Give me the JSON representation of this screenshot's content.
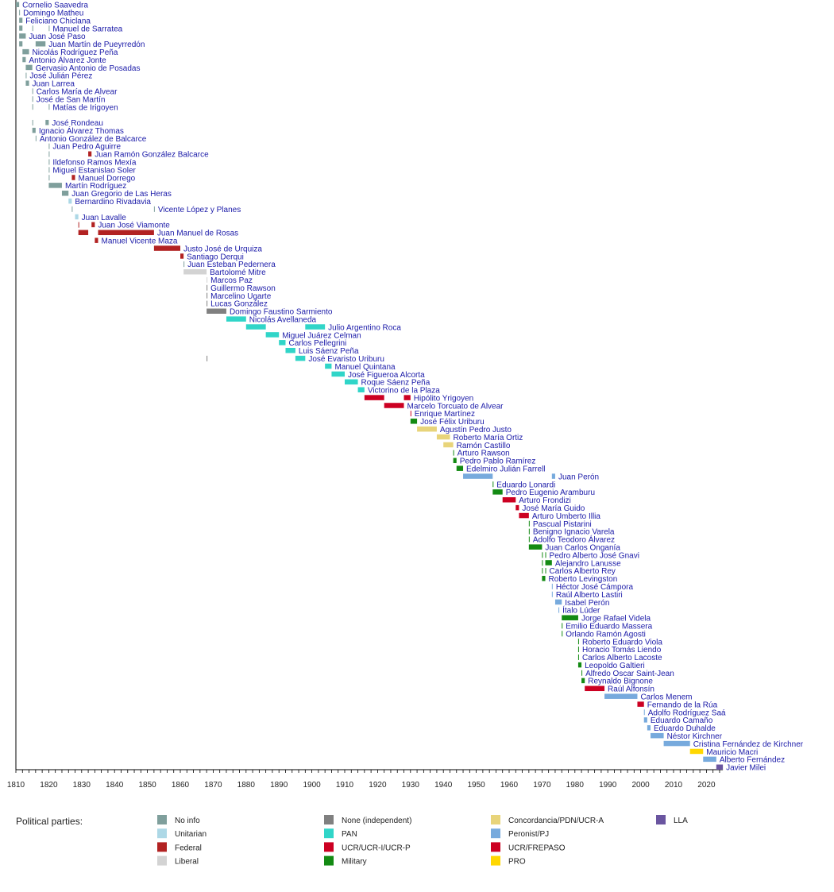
{
  "chart_data": {
    "type": "timeline",
    "title": "",
    "xlabel": "",
    "ylabel": "",
    "xlim": [
      1810,
      2025
    ],
    "x_ticks": [
      1810,
      1820,
      1830,
      1840,
      1850,
      1860,
      1870,
      1880,
      1890,
      1900,
      1910,
      1920,
      1930,
      1940,
      1950,
      1960,
      1970,
      1980,
      1990,
      2000,
      2010,
      2020
    ],
    "legend": {
      "title": "Political parties:",
      "placement": "bottom",
      "entries": [
        {
          "key": "noinfo",
          "label": "No info",
          "color": "#7f9f9c"
        },
        {
          "key": "unitarian",
          "label": "Unitarian",
          "color": "#add8e6"
        },
        {
          "key": "federal",
          "label": "Federal",
          "color": "#b22222"
        },
        {
          "key": "liberal",
          "label": "Liberal",
          "color": "#d3d3d3"
        },
        {
          "key": "none",
          "label": "None (independent)",
          "color": "#808080"
        },
        {
          "key": "pan",
          "label": "PAN",
          "color": "#30d5c8"
        },
        {
          "key": "ucr",
          "label": "UCR/UCR-I/UCR-P",
          "color": "#cc0022"
        },
        {
          "key": "military",
          "label": "Military",
          "color": "#138a13"
        },
        {
          "key": "concordancia",
          "label": "Concordancia/PDN/UCR-A",
          "color": "#e8d47a"
        },
        {
          "key": "peronist",
          "label": "Peronist/PJ",
          "color": "#77aadd"
        },
        {
          "key": "frepaso",
          "label": "UCR/FREPASO",
          "color": "#cc0022"
        },
        {
          "key": "pro",
          "label": "PRO",
          "color": "#ffd700"
        },
        {
          "key": "lla",
          "label": "LLA",
          "color": "#6a55a0"
        }
      ]
    },
    "rows": [
      {
        "name": "Cornelio Saavedra",
        "terms": [
          [
            1810,
            1811,
            "noinfo"
          ]
        ]
      },
      {
        "name": "Domingo Matheu",
        "terms": [
          [
            1811,
            1811,
            "noinfo"
          ]
        ]
      },
      {
        "name": "Feliciano Chiclana",
        "terms": [
          [
            1811,
            1812,
            "noinfo"
          ]
        ]
      },
      {
        "name": "Manuel de Sarratea",
        "terms": [
          [
            1811,
            1812,
            "noinfo"
          ],
          [
            1815,
            1815,
            "noinfo"
          ],
          [
            1820,
            1820,
            "noinfo"
          ]
        ]
      },
      {
        "name": "Juan José Paso",
        "terms": [
          [
            1811,
            1813,
            "noinfo"
          ]
        ]
      },
      {
        "name": "Juan Martín de Pueyrredón",
        "terms": [
          [
            1811,
            1812,
            "noinfo"
          ],
          [
            1816,
            1819,
            "noinfo"
          ]
        ]
      },
      {
        "name": "Nicolás Rodríguez Peña",
        "terms": [
          [
            1812,
            1814,
            "noinfo"
          ]
        ]
      },
      {
        "name": "Antonio Álvarez Jonte",
        "terms": [
          [
            1812,
            1813,
            "noinfo"
          ]
        ]
      },
      {
        "name": "Gervasio Antonio de Posadas",
        "terms": [
          [
            1813,
            1815,
            "noinfo"
          ]
        ]
      },
      {
        "name": "José Julián Pérez",
        "terms": [
          [
            1813,
            1813,
            "noinfo"
          ]
        ]
      },
      {
        "name": "Juan Larrea",
        "terms": [
          [
            1813,
            1814,
            "noinfo"
          ]
        ]
      },
      {
        "name": "Carlos María de Alvear",
        "terms": [
          [
            1815,
            1815,
            "noinfo"
          ]
        ]
      },
      {
        "name": "José de San Martín",
        "terms": [
          [
            1815,
            1815,
            "noinfo"
          ]
        ]
      },
      {
        "name": "Matías de Irigoyen",
        "terms": [
          [
            1815,
            1815,
            "noinfo"
          ],
          [
            1820,
            1820,
            "noinfo"
          ]
        ]
      },
      {
        "name": "",
        "terms": []
      },
      {
        "name": "José Rondeau",
        "terms": [
          [
            1815,
            1815,
            "noinfo"
          ],
          [
            1819,
            1820,
            "noinfo"
          ]
        ]
      },
      {
        "name": "Ignacio Álvarez Thomas",
        "terms": [
          [
            1815,
            1816,
            "noinfo"
          ]
        ]
      },
      {
        "name": "Antonio González de Balcarce",
        "terms": [
          [
            1816,
            1816,
            "noinfo"
          ]
        ]
      },
      {
        "name": "Juan Pedro Aguirre",
        "terms": [
          [
            1820,
            1820,
            "noinfo"
          ]
        ]
      },
      {
        "name": "Juan Ramón González Balcarce",
        "terms": [
          [
            1820,
            1820,
            "noinfo"
          ],
          [
            1832,
            1833,
            "federal"
          ]
        ]
      },
      {
        "name": "Ildefonso Ramos Mexía",
        "terms": [
          [
            1820,
            1820,
            "noinfo"
          ]
        ]
      },
      {
        "name": "Miguel Estanislao Soler",
        "terms": [
          [
            1820,
            1820,
            "noinfo"
          ]
        ]
      },
      {
        "name": "Manuel Dorrego",
        "terms": [
          [
            1820,
            1820,
            "noinfo"
          ],
          [
            1827,
            1828,
            "federal"
          ]
        ]
      },
      {
        "name": "Martín Rodríguez",
        "terms": [
          [
            1820,
            1824,
            "noinfo"
          ]
        ]
      },
      {
        "name": "Juan Gregorio de Las Heras",
        "terms": [
          [
            1824,
            1826,
            "noinfo"
          ]
        ]
      },
      {
        "name": "Bernardino Rivadavia",
        "terms": [
          [
            1826,
            1827,
            "unitarian"
          ]
        ]
      },
      {
        "name": "Vicente López y Planes",
        "terms": [
          [
            1827,
            1827,
            "noinfo"
          ],
          [
            1852,
            1852,
            "noinfo"
          ]
        ]
      },
      {
        "name": "Juan Lavalle",
        "terms": [
          [
            1828,
            1829,
            "unitarian"
          ]
        ]
      },
      {
        "name": "Juan José Viamonte",
        "terms": [
          [
            1829,
            1829,
            "federal"
          ],
          [
            1833,
            1834,
            "federal"
          ]
        ]
      },
      {
        "name": "Juan Manuel de Rosas",
        "terms": [
          [
            1829,
            1832,
            "federal"
          ],
          [
            1835,
            1852,
            "federal"
          ]
        ]
      },
      {
        "name": "Manuel Vicente Maza",
        "terms": [
          [
            1834,
            1835,
            "federal"
          ]
        ]
      },
      {
        "name": "Justo José de Urquiza",
        "terms": [
          [
            1852,
            1860,
            "federal"
          ]
        ]
      },
      {
        "name": "Santiago Derqui",
        "terms": [
          [
            1860,
            1861,
            "federal"
          ]
        ]
      },
      {
        "name": "Juan Esteban Pedernera",
        "terms": [
          [
            1861,
            1861,
            "noinfo"
          ]
        ]
      },
      {
        "name": "Bartolomé Mitre",
        "terms": [
          [
            1861,
            1868,
            "liberal"
          ]
        ]
      },
      {
        "name": "Marcos Paz",
        "terms": [
          [
            1868,
            1868,
            "liberal"
          ]
        ]
      },
      {
        "name": "Guillermo Rawson",
        "terms": [
          [
            1868,
            1868,
            "none"
          ]
        ]
      },
      {
        "name": "Marcelino Ugarte",
        "terms": [
          [
            1868,
            1868,
            "none"
          ]
        ]
      },
      {
        "name": "Lucas González",
        "terms": [
          [
            1868,
            1868,
            "none"
          ]
        ]
      },
      {
        "name": "Domingo Faustino Sarmiento",
        "terms": [
          [
            1868,
            1874,
            "none"
          ]
        ]
      },
      {
        "name": "Nicolás Avellaneda",
        "terms": [
          [
            1874,
            1880,
            "pan"
          ]
        ]
      },
      {
        "name": "Julio Argentino Roca",
        "terms": [
          [
            1880,
            1886,
            "pan"
          ],
          [
            1898,
            1904,
            "pan"
          ]
        ]
      },
      {
        "name": "Miguel Juárez Celman",
        "terms": [
          [
            1886,
            1890,
            "pan"
          ]
        ]
      },
      {
        "name": "Carlos Pellegrini",
        "terms": [
          [
            1890,
            1892,
            "pan"
          ]
        ]
      },
      {
        "name": "Luis Sáenz Peña",
        "terms": [
          [
            1892,
            1895,
            "pan"
          ]
        ]
      },
      {
        "name": "José Evaristo Uriburu",
        "terms": [
          [
            1868,
            1868,
            "none"
          ],
          [
            1895,
            1898,
            "pan"
          ]
        ]
      },
      {
        "name": "Manuel Quintana",
        "terms": [
          [
            1904,
            1906,
            "pan"
          ]
        ]
      },
      {
        "name": "José Figueroa Alcorta",
        "terms": [
          [
            1906,
            1910,
            "pan"
          ]
        ]
      },
      {
        "name": "Roque Sáenz Peña",
        "terms": [
          [
            1910,
            1914,
            "pan"
          ]
        ]
      },
      {
        "name": "Victorino de la Plaza",
        "terms": [
          [
            1914,
            1916,
            "pan"
          ]
        ]
      },
      {
        "name": "Hipólito Yrigoyen",
        "terms": [
          [
            1916,
            1922,
            "ucr"
          ],
          [
            1928,
            1930,
            "ucr"
          ]
        ]
      },
      {
        "name": "Marcelo Torcuato de Alvear",
        "terms": [
          [
            1922,
            1928,
            "ucr"
          ]
        ]
      },
      {
        "name": "Enrique Martínez",
        "terms": [
          [
            1930,
            1930,
            "ucr"
          ]
        ]
      },
      {
        "name": "José Félix Uriburu",
        "terms": [
          [
            1930,
            1932,
            "military"
          ]
        ]
      },
      {
        "name": "Agustín Pedro Justo",
        "terms": [
          [
            1932,
            1938,
            "concordancia"
          ]
        ]
      },
      {
        "name": "Roberto María Ortiz",
        "terms": [
          [
            1938,
            1942,
            "concordancia"
          ]
        ]
      },
      {
        "name": "Ramón Castillo",
        "terms": [
          [
            1940,
            1943,
            "concordancia"
          ]
        ]
      },
      {
        "name": "Arturo Rawson",
        "terms": [
          [
            1943,
            1943,
            "military"
          ]
        ]
      },
      {
        "name": "Pedro Pablo Ramírez",
        "terms": [
          [
            1943,
            1944,
            "military"
          ]
        ]
      },
      {
        "name": "Edelmiro Julián Farrell",
        "terms": [
          [
            1944,
            1946,
            "military"
          ]
        ]
      },
      {
        "name": "Juan Perón",
        "terms": [
          [
            1946,
            1955,
            "peronist"
          ],
          [
            1973,
            1974,
            "peronist"
          ]
        ]
      },
      {
        "name": "Eduardo Lonardi",
        "terms": [
          [
            1955,
            1955,
            "military"
          ]
        ]
      },
      {
        "name": "Pedro Eugenio Aramburu",
        "terms": [
          [
            1955,
            1958,
            "military"
          ]
        ]
      },
      {
        "name": "Arturo Frondizi",
        "terms": [
          [
            1958,
            1962,
            "ucr"
          ]
        ]
      },
      {
        "name": "José María Guido",
        "terms": [
          [
            1962,
            1963,
            "ucr"
          ]
        ]
      },
      {
        "name": "Arturo Umberto Illia",
        "terms": [
          [
            1963,
            1966,
            "ucr"
          ]
        ]
      },
      {
        "name": "Pascual Pistarini",
        "terms": [
          [
            1966,
            1966,
            "military"
          ]
        ]
      },
      {
        "name": "Benigno Ignacio Varela",
        "terms": [
          [
            1966,
            1966,
            "military"
          ]
        ]
      },
      {
        "name": "Adolfo Teodoro Álvarez",
        "terms": [
          [
            1966,
            1966,
            "military"
          ]
        ]
      },
      {
        "name": "Juan Carlos Onganía",
        "terms": [
          [
            1966,
            1970,
            "military"
          ]
        ]
      },
      {
        "name": "Pedro Alberto José Gnavi",
        "terms": [
          [
            1970,
            1970,
            "military"
          ],
          [
            1971,
            1971,
            "military"
          ]
        ]
      },
      {
        "name": "Alejandro Lanusse",
        "terms": [
          [
            1970,
            1970,
            "military"
          ],
          [
            1971,
            1973,
            "military"
          ]
        ]
      },
      {
        "name": "Carlos Alberto Rey",
        "terms": [
          [
            1970,
            1970,
            "military"
          ],
          [
            1971,
            1971,
            "military"
          ]
        ]
      },
      {
        "name": "Roberto Levingston",
        "terms": [
          [
            1970,
            1971,
            "military"
          ]
        ]
      },
      {
        "name": "Héctor José Cámpora",
        "terms": [
          [
            1973,
            1973,
            "peronist"
          ]
        ]
      },
      {
        "name": "Raúl Alberto Lastiri",
        "terms": [
          [
            1973,
            1973,
            "peronist"
          ]
        ]
      },
      {
        "name": "Isabel Perón",
        "terms": [
          [
            1974,
            1976,
            "peronist"
          ]
        ]
      },
      {
        "name": "Ítalo Lúder",
        "terms": [
          [
            1975,
            1975,
            "peronist"
          ]
        ]
      },
      {
        "name": "Jorge Rafael Videla",
        "terms": [
          [
            1976,
            1981,
            "military"
          ]
        ]
      },
      {
        "name": "Emilio Eduardo Massera",
        "terms": [
          [
            1976,
            1976,
            "military"
          ]
        ]
      },
      {
        "name": "Orlando Ramón Agosti",
        "terms": [
          [
            1976,
            1976,
            "military"
          ]
        ]
      },
      {
        "name": "Roberto Eduardo Viola",
        "terms": [
          [
            1981,
            1981,
            "military"
          ]
        ]
      },
      {
        "name": "Horacio Tomás Liendo",
        "terms": [
          [
            1981,
            1981,
            "military"
          ]
        ]
      },
      {
        "name": "Carlos Alberto Lacoste",
        "terms": [
          [
            1981,
            1981,
            "military"
          ]
        ]
      },
      {
        "name": "Leopoldo Galtieri",
        "terms": [
          [
            1981,
            1982,
            "military"
          ]
        ]
      },
      {
        "name": "Alfredo Oscar Saint-Jean",
        "terms": [
          [
            1982,
            1982,
            "military"
          ]
        ]
      },
      {
        "name": "Reynaldo Bignone",
        "terms": [
          [
            1982,
            1983,
            "military"
          ]
        ]
      },
      {
        "name": "Raúl Alfonsín",
        "terms": [
          [
            1983,
            1989,
            "ucr"
          ]
        ]
      },
      {
        "name": "Carlos Menem",
        "terms": [
          [
            1989,
            1999,
            "peronist"
          ]
        ]
      },
      {
        "name": "Fernando de la Rúa",
        "terms": [
          [
            1999,
            2001,
            "frepaso"
          ]
        ]
      },
      {
        "name": "Adolfo Rodríguez Saá",
        "terms": [
          [
            2001,
            2001,
            "peronist"
          ]
        ]
      },
      {
        "name": "Eduardo Camaño",
        "terms": [
          [
            2001,
            2002,
            "peronist"
          ]
        ]
      },
      {
        "name": "Eduardo Duhalde",
        "terms": [
          [
            2002,
            2003,
            "peronist"
          ]
        ]
      },
      {
        "name": "Néstor Kirchner",
        "terms": [
          [
            2003,
            2007,
            "peronist"
          ]
        ]
      },
      {
        "name": "Cristina Fernández de Kirchner",
        "terms": [
          [
            2007,
            2015,
            "peronist"
          ]
        ]
      },
      {
        "name": "Mauricio Macri",
        "terms": [
          [
            2015,
            2019,
            "pro"
          ]
        ]
      },
      {
        "name": "Alberto Fernández",
        "terms": [
          [
            2019,
            2023,
            "peronist"
          ]
        ]
      },
      {
        "name": "Javier Milei",
        "terms": [
          [
            2023,
            2025,
            "lla"
          ]
        ]
      }
    ]
  }
}
